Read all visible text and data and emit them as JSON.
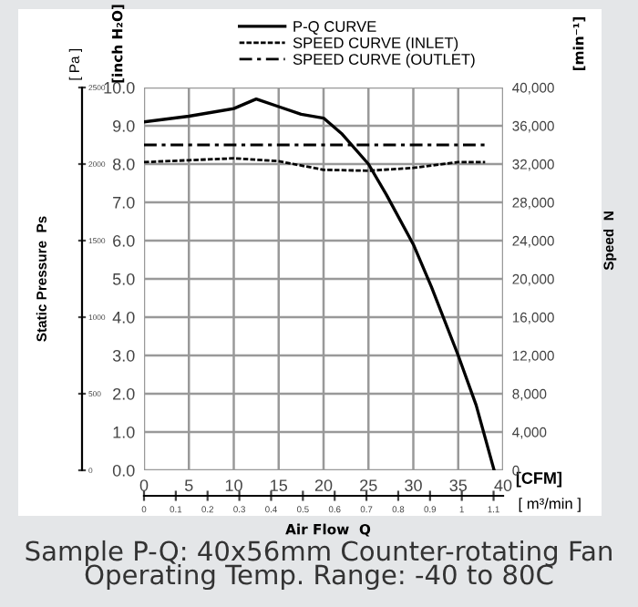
{
  "chart_data": {
    "type": "line",
    "title": "Sample P-Q: 40x56mm Counter-rotating Fan\nOperating Temp. Range: -40 to 80C",
    "xlabel": "[CFM]",
    "x2label": "[ m³/min ]",
    "ylabel": "Static Pressure  Ps",
    "y2label": "Speed  N",
    "y3label": "[ Pa ]",
    "annotations": [
      "[inch H₂O]",
      "[min⁻¹]",
      "Air Flow  Q"
    ],
    "series": [
      {
        "name": "P-Q CURVE",
        "color": "#000000",
        "line_style": "solid",
        "x": [
          0,
          5,
          10,
          12.5,
          15,
          17.5,
          20,
          22,
          25,
          27,
          30,
          32,
          35,
          37,
          39
        ],
        "values": [
          9.1,
          9.25,
          9.45,
          9.7,
          9.5,
          9.3,
          9.2,
          8.8,
          8.0,
          7.2,
          5.9,
          4.8,
          3.0,
          1.7,
          0
        ]
      },
      {
        "name": "SPEED CURVE (INLET)",
        "color": "#000000",
        "line_style": "dashed",
        "axis": "y2",
        "x": [
          0,
          5,
          10,
          15,
          20,
          25,
          30,
          35,
          38
        ],
        "values": [
          32200,
          32400,
          32600,
          32300,
          31400,
          31300,
          31600,
          32200,
          32200
        ]
      },
      {
        "name": "SPEED CURVE (OUTLET)",
        "color": "#000000",
        "line_style": "dashdot",
        "axis": "y2",
        "x": [
          0,
          10,
          20,
          30,
          38
        ],
        "values": [
          34000,
          34000,
          34000,
          34000,
          34000
        ]
      }
    ],
    "xlim": [
      0,
      40
    ],
    "xticks": [
      0,
      5,
      10,
      15,
      20,
      25,
      30,
      35,
      40
    ],
    "ylim": [
      0,
      10
    ],
    "yticks": [
      {
        "value": 0,
        "label": "0.0"
      },
      {
        "value": 1,
        "label": "1.0"
      },
      {
        "value": 2,
        "label": "2.0"
      },
      {
        "value": 3,
        "label": "3.0"
      },
      {
        "value": 4,
        "label": "4.0"
      },
      {
        "value": 5,
        "label": "5.0"
      },
      {
        "value": 6,
        "label": "6.0"
      },
      {
        "value": 7,
        "label": "7.0"
      },
      {
        "value": 8,
        "label": "8.0"
      },
      {
        "value": 9,
        "label": "9.0"
      },
      {
        "value": 10,
        "label": "10.0"
      }
    ],
    "y2lim": [
      0,
      40000
    ],
    "y2ticks": [
      0,
      {
        "value": 4000,
        "label": "4,000"
      },
      {
        "value": 8000,
        "label": "8,000"
      },
      {
        "value": 12000,
        "label": "12,000"
      },
      {
        "value": 16000,
        "label": "16,000"
      },
      {
        "value": 20000,
        "label": "20,000"
      },
      {
        "value": 24000,
        "label": "24,000"
      },
      {
        "value": 28000,
        "label": "28,000"
      },
      {
        "value": 32000,
        "label": "32,000"
      },
      {
        "value": 36000,
        "label": "36,000"
      },
      {
        "value": 40000,
        "label": "40,000"
      }
    ],
    "y3lim": [
      0,
      2500
    ],
    "y3ticks": [
      0,
      500,
      1000,
      1500,
      2000,
      2500
    ],
    "x2lim": [
      0,
      1.13
    ],
    "x2ticks": [
      0,
      0.1,
      0.2,
      0.3,
      0.4,
      0.5,
      0.6,
      0.7,
      0.8,
      0.9,
      1,
      1.1
    ],
    "grid": true,
    "legend": "top",
    "marker": "none"
  }
}
